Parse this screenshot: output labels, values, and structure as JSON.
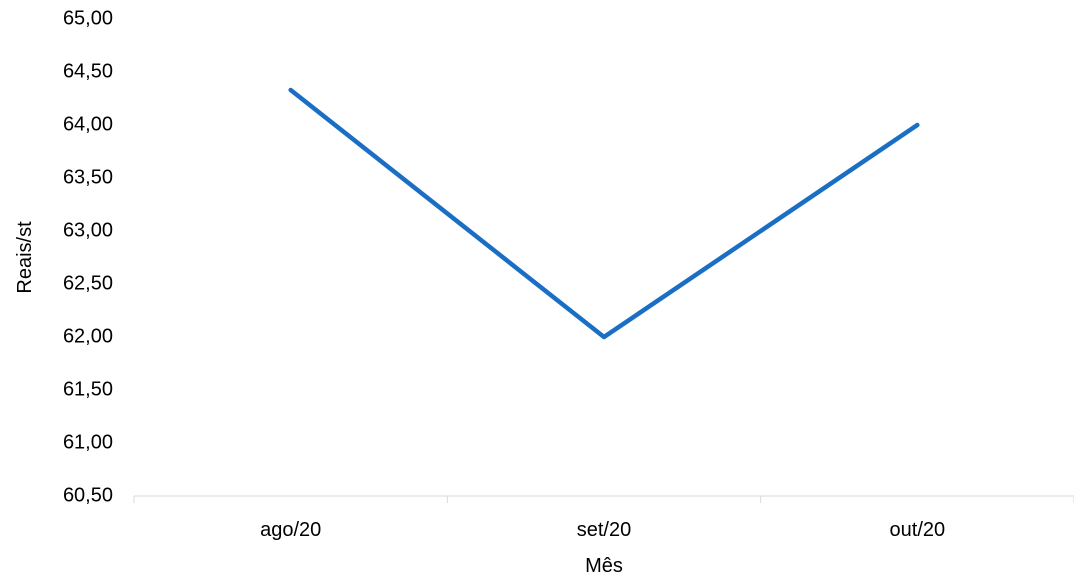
{
  "chart_data": {
    "type": "line",
    "title": "",
    "xlabel": "Mês",
    "ylabel": "Reais/st",
    "categories": [
      "ago/20",
      "set/20",
      "out/20"
    ],
    "series": [
      {
        "values": [
          64.33,
          62.0,
          64.0
        ],
        "color": "#1a6fc4"
      }
    ],
    "ylim": [
      60.5,
      65.0
    ],
    "yticks": [
      60.5,
      61.0,
      61.5,
      62.0,
      62.5,
      63.0,
      63.5,
      64.0,
      64.5,
      65.0
    ],
    "ytick_labels": [
      "60,50",
      "61,00",
      "61,50",
      "62,00",
      "62,50",
      "63,00",
      "63,50",
      "64,00",
      "64,50",
      "65,00"
    ],
    "grid": false,
    "legend": "none",
    "axis_color": "#d9d9d9"
  }
}
